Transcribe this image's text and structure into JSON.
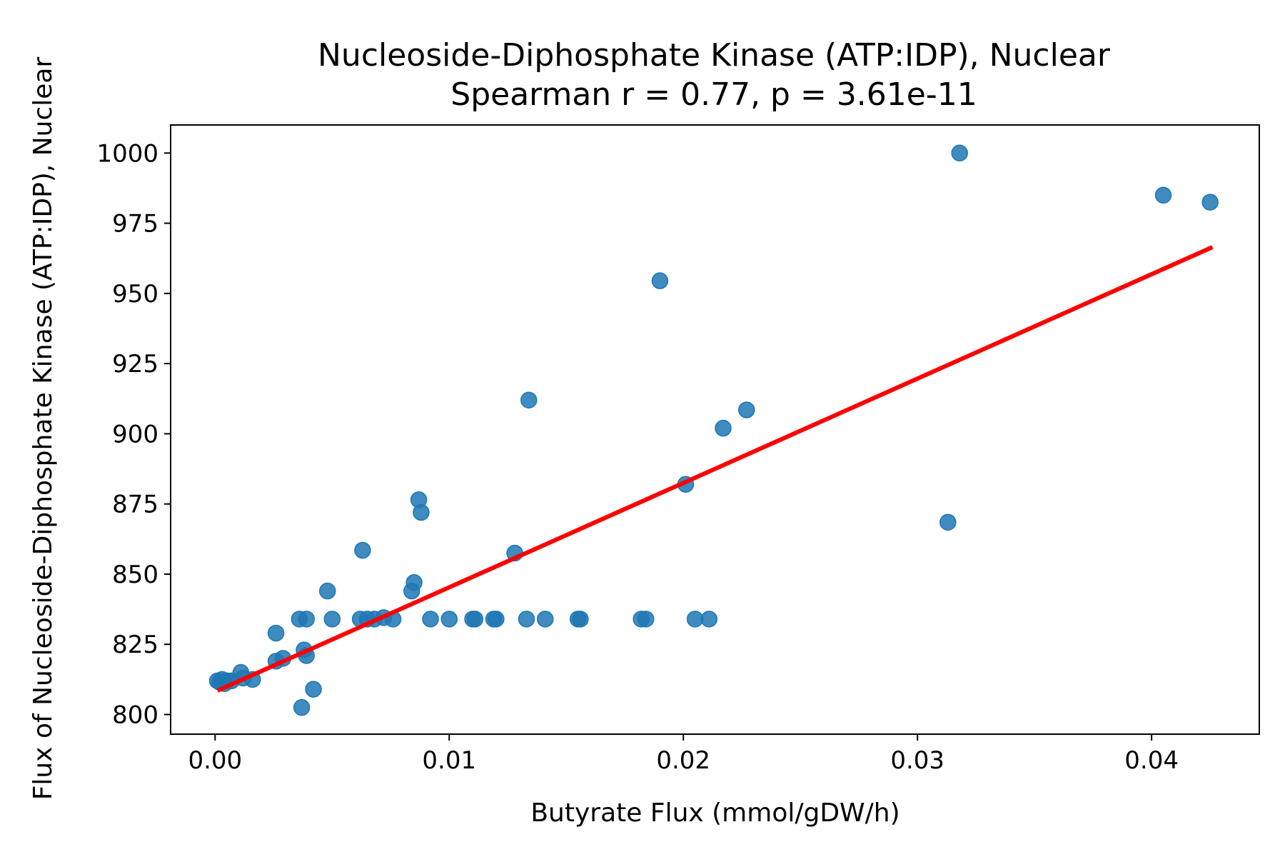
{
  "chart_data": {
    "type": "scatter",
    "title": "Nucleoside-Diphosphate Kinase (ATP:IDP), Nuclear",
    "subtitle": "Spearman r = 0.77, p = 3.61e-11",
    "xlabel": "Butyrate Flux (mmol/gDW/h)",
    "ylabel": "Flux of Nucleoside-Diphosphate Kinase (ATP:IDP), Nuclear",
    "xlim": [
      -0.0019,
      0.0446
    ],
    "ylim": [
      793,
      1010
    ],
    "x_ticks": [
      0.0,
      0.01,
      0.02,
      0.03,
      0.04
    ],
    "x_tick_labels": [
      "0.00",
      "0.01",
      "0.02",
      "0.03",
      "0.04"
    ],
    "y_ticks": [
      800,
      825,
      850,
      875,
      900,
      925,
      950,
      975,
      1000
    ],
    "y_tick_labels": [
      "800",
      "825",
      "850",
      "875",
      "900",
      "925",
      "950",
      "975",
      "1000"
    ],
    "grid": false,
    "colors": {
      "points": "#1f77b4",
      "fit_line": "#ff0000"
    },
    "fit_line": {
      "x": [
        0.0001,
        0.0426
      ],
      "y": [
        808.5,
        966.5
      ]
    },
    "points": [
      {
        "x": 0.0001,
        "y": 812
      },
      {
        "x": 0.0002,
        "y": 811.5
      },
      {
        "x": 0.0003,
        "y": 812.5
      },
      {
        "x": 0.0004,
        "y": 811
      },
      {
        "x": 0.0005,
        "y": 812
      },
      {
        "x": 0.0007,
        "y": 812
      },
      {
        "x": 0.0011,
        "y": 815
      },
      {
        "x": 0.0012,
        "y": 813
      },
      {
        "x": 0.0016,
        "y": 812.5
      },
      {
        "x": 0.0026,
        "y": 829
      },
      {
        "x": 0.0026,
        "y": 819
      },
      {
        "x": 0.0029,
        "y": 820
      },
      {
        "x": 0.0036,
        "y": 834
      },
      {
        "x": 0.0037,
        "y": 802.5
      },
      {
        "x": 0.0038,
        "y": 823
      },
      {
        "x": 0.0039,
        "y": 821
      },
      {
        "x": 0.0039,
        "y": 834
      },
      {
        "x": 0.0042,
        "y": 809
      },
      {
        "x": 0.0048,
        "y": 844
      },
      {
        "x": 0.005,
        "y": 834
      },
      {
        "x": 0.0062,
        "y": 834
      },
      {
        "x": 0.0063,
        "y": 858.5
      },
      {
        "x": 0.0065,
        "y": 834
      },
      {
        "x": 0.0068,
        "y": 834
      },
      {
        "x": 0.0072,
        "y": 834.5
      },
      {
        "x": 0.0076,
        "y": 834
      },
      {
        "x": 0.0084,
        "y": 844
      },
      {
        "x": 0.0085,
        "y": 847
      },
      {
        "x": 0.0087,
        "y": 876.5
      },
      {
        "x": 0.0088,
        "y": 872
      },
      {
        "x": 0.0092,
        "y": 834
      },
      {
        "x": 0.01,
        "y": 834
      },
      {
        "x": 0.011,
        "y": 834
      },
      {
        "x": 0.0111,
        "y": 834
      },
      {
        "x": 0.0119,
        "y": 834
      },
      {
        "x": 0.012,
        "y": 834
      },
      {
        "x": 0.0128,
        "y": 857.5
      },
      {
        "x": 0.0133,
        "y": 834
      },
      {
        "x": 0.0134,
        "y": 912
      },
      {
        "x": 0.0141,
        "y": 834
      },
      {
        "x": 0.0155,
        "y": 834
      },
      {
        "x": 0.0156,
        "y": 834
      },
      {
        "x": 0.0182,
        "y": 834
      },
      {
        "x": 0.0184,
        "y": 834
      },
      {
        "x": 0.019,
        "y": 954.5
      },
      {
        "x": 0.0201,
        "y": 882
      },
      {
        "x": 0.0205,
        "y": 834
      },
      {
        "x": 0.0211,
        "y": 834
      },
      {
        "x": 0.0217,
        "y": 902
      },
      {
        "x": 0.0227,
        "y": 908.5
      },
      {
        "x": 0.0313,
        "y": 868.5
      },
      {
        "x": 0.0318,
        "y": 1000
      },
      {
        "x": 0.0405,
        "y": 985
      },
      {
        "x": 0.0425,
        "y": 982.5
      }
    ]
  }
}
